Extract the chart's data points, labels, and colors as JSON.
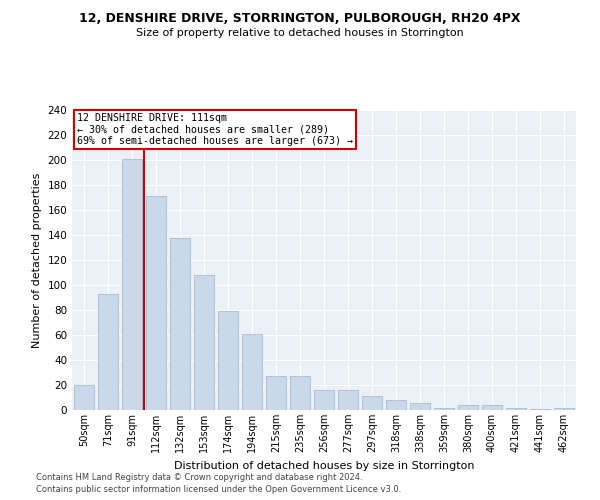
{
  "title1": "12, DENSHIRE DRIVE, STORRINGTON, PULBOROUGH, RH20 4PX",
  "title2": "Size of property relative to detached houses in Storrington",
  "xlabel": "Distribution of detached houses by size in Storrington",
  "ylabel": "Number of detached properties",
  "bar_color": "#c9d9ea",
  "bar_edge_color": "#9ab5cc",
  "categories": [
    "50sqm",
    "71sqm",
    "91sqm",
    "112sqm",
    "132sqm",
    "153sqm",
    "174sqm",
    "194sqm",
    "215sqm",
    "235sqm",
    "256sqm",
    "277sqm",
    "297sqm",
    "318sqm",
    "338sqm",
    "359sqm",
    "380sqm",
    "400sqm",
    "421sqm",
    "441sqm",
    "462sqm"
  ],
  "values": [
    20,
    93,
    201,
    171,
    138,
    108,
    79,
    61,
    27,
    27,
    16,
    16,
    11,
    8,
    6,
    2,
    4,
    4,
    2,
    1,
    2
  ],
  "vline_color": "#cc0000",
  "annotation_text": "12 DENSHIRE DRIVE: 111sqm\n← 30% of detached houses are smaller (289)\n69% of semi-detached houses are larger (673) →",
  "annotation_box_color": "#ffffff",
  "annotation_box_edge_color": "#cc0000",
  "ylim": [
    0,
    240
  ],
  "yticks": [
    0,
    20,
    40,
    60,
    80,
    100,
    120,
    140,
    160,
    180,
    200,
    220,
    240
  ],
  "footnote1": "Contains HM Land Registry data © Crown copyright and database right 2024.",
  "footnote2": "Contains public sector information licensed under the Open Government Licence v3.0.",
  "plot_bg_color": "#eaf0f6"
}
